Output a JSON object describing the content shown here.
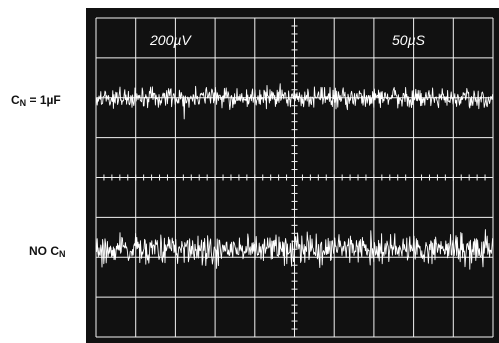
{
  "scope": {
    "vertical_scale": "200µV",
    "time_scale": "50µS",
    "background_color": "#111111",
    "trace_color": "#ffffff",
    "grid_color": "#f2f2f2"
  },
  "labels": {
    "top_prefix": "C",
    "top_sub": "N",
    "top_suffix": " = 1µF",
    "bottom_prefix": "NO C",
    "bottom_sub": "N"
  },
  "chart_data": {
    "type": "line",
    "title": "",
    "grid": true,
    "divisions": {
      "x": 10,
      "y": 8
    },
    "x_per_division": "50µS",
    "y_per_division": "200µV",
    "series": [
      {
        "name": "C_N = 1µF",
        "center_div": 6.0,
        "noise_peak_to_peak_div": 0.55
      },
      {
        "name": "NO C_N",
        "center_div": 2.2,
        "noise_peak_to_peak_div": 0.85
      }
    ]
  }
}
